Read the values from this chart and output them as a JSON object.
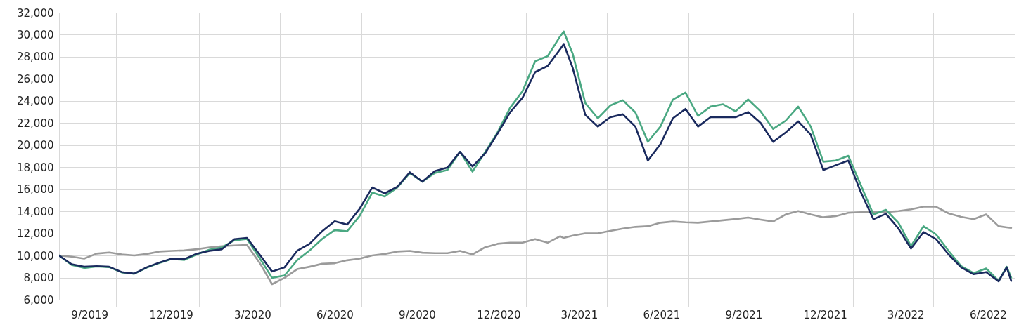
{
  "chart_data": {
    "type": "line",
    "x": [
      "2019-07-29",
      "2019-08-12",
      "2019-08-26",
      "2019-09-09",
      "2019-09-23",
      "2019-10-07",
      "2019-10-21",
      "2019-11-04",
      "2019-11-18",
      "2019-12-02",
      "2019-12-16",
      "2019-12-30",
      "2020-01-13",
      "2020-01-27",
      "2020-02-10",
      "2020-02-24",
      "2020-03-09",
      "2020-03-23",
      "2020-04-06",
      "2020-04-20",
      "2020-05-04",
      "2020-05-18",
      "2020-06-01",
      "2020-06-15",
      "2020-06-29",
      "2020-07-13",
      "2020-07-27",
      "2020-08-10",
      "2020-08-24",
      "2020-09-07",
      "2020-09-21",
      "2020-10-05",
      "2020-10-19",
      "2020-11-02",
      "2020-11-16",
      "2020-11-30",
      "2020-12-14",
      "2020-12-28",
      "2021-01-11",
      "2021-01-25",
      "2021-02-08",
      "2021-02-12",
      "2021-02-22",
      "2021-03-08",
      "2021-03-22",
      "2021-04-05",
      "2021-04-19",
      "2021-05-03",
      "2021-05-17",
      "2021-05-31",
      "2021-06-14",
      "2021-06-28",
      "2021-07-12",
      "2021-07-26",
      "2021-08-09",
      "2021-08-23",
      "2021-09-06",
      "2021-09-20",
      "2021-10-04",
      "2021-10-18",
      "2021-11-01",
      "2021-11-15",
      "2021-11-29",
      "2021-12-13",
      "2021-12-27",
      "2022-01-10",
      "2022-01-24",
      "2022-02-07",
      "2022-02-21",
      "2022-03-07",
      "2022-03-21",
      "2022-04-04",
      "2022-04-18",
      "2022-05-02",
      "2022-05-16",
      "2022-05-30",
      "2022-06-13",
      "2022-06-22",
      "2022-06-27"
    ],
    "series": [
      {
        "color": "#9b9b9b",
        "values": [
          10000,
          9890,
          9720,
          10170,
          10270,
          10100,
          10000,
          10140,
          10360,
          10420,
          10460,
          10570,
          10740,
          10850,
          10910,
          10950,
          9360,
          7400,
          7980,
          8760,
          8980,
          9250,
          9300,
          9570,
          9720,
          10000,
          10140,
          10360,
          10420,
          10250,
          10210,
          10210,
          10420,
          10100,
          10740,
          11060,
          11160,
          11160,
          11480,
          11160,
          11740,
          11590,
          11800,
          12010,
          12010,
          12230,
          12440,
          12590,
          12650,
          12970,
          13080,
          13010,
          12970,
          13080,
          13190,
          13300,
          13440,
          13250,
          13080,
          13720,
          14030,
          13720,
          13460,
          13570,
          13870,
          13930,
          13930,
          13930,
          14030,
          14180,
          14420,
          14420,
          13820,
          13500,
          13290,
          13720,
          12650,
          12550,
          12500
        ]
      },
      {
        "color": "#4aa882",
        "values": [
          10000,
          9150,
          8870,
          9000,
          8950,
          8470,
          8340,
          8900,
          9320,
          9680,
          9600,
          10100,
          10530,
          10740,
          11380,
          11500,
          9780,
          7980,
          8190,
          9570,
          10460,
          11500,
          12300,
          12200,
          13600,
          15690,
          15350,
          16160,
          17480,
          16690,
          17480,
          17750,
          19390,
          17600,
          19350,
          21150,
          23380,
          24900,
          27590,
          28060,
          29860,
          30290,
          28270,
          23810,
          22430,
          23590,
          24060,
          22960,
          20300,
          21680,
          24130,
          24760,
          22640,
          23490,
          23700,
          23060,
          24130,
          23060,
          21470,
          22210,
          23490,
          21680,
          18500,
          18600,
          19030,
          16370,
          13720,
          14140,
          12970,
          10850,
          12650,
          11910,
          10420,
          9040,
          8400,
          8830,
          7700,
          8980,
          8000
        ]
      },
      {
        "color": "#1a2a5e",
        "values": [
          10000,
          9210,
          8980,
          9040,
          8980,
          8500,
          8360,
          8930,
          9360,
          9720,
          9680,
          10170,
          10420,
          10570,
          11480,
          11590,
          10100,
          8550,
          8930,
          10420,
          11060,
          12200,
          13100,
          12800,
          14250,
          16160,
          15630,
          16220,
          17540,
          16690,
          17650,
          17960,
          19390,
          18070,
          19240,
          21040,
          22960,
          24300,
          26610,
          27170,
          28700,
          29160,
          26990,
          22740,
          21680,
          22530,
          22790,
          21680,
          18600,
          20090,
          22430,
          23280,
          21680,
          22530,
          22530,
          22530,
          23000,
          22000,
          20300,
          21150,
          22150,
          20940,
          17750,
          18180,
          18600,
          15730,
          13290,
          13780,
          12440,
          10630,
          12120,
          11480,
          10100,
          8930,
          8300,
          8500,
          7660,
          8930,
          7700
        ]
      }
    ],
    "xlim": [
      "2019-07-29",
      "2022-07-01"
    ],
    "xticks": [
      {
        "value": "2019-09-01",
        "label": "9/2019"
      },
      {
        "value": "2019-10-01",
        "label": null
      },
      {
        "value": "2019-12-01",
        "label": "12/2019"
      },
      {
        "value": "2020-01-01",
        "label": null
      },
      {
        "value": "2020-03-01",
        "label": "3/2020"
      },
      {
        "value": "2020-04-01",
        "label": null
      },
      {
        "value": "2020-06-01",
        "label": "6/2020"
      },
      {
        "value": "2020-07-01",
        "label": null
      },
      {
        "value": "2020-09-01",
        "label": "9/2020"
      },
      {
        "value": "2020-10-01",
        "label": null
      },
      {
        "value": "2020-12-01",
        "label": "12/2020"
      },
      {
        "value": "2021-01-01",
        "label": null
      },
      {
        "value": "2021-03-01",
        "label": "3/2021"
      },
      {
        "value": "2021-04-01",
        "label": null
      },
      {
        "value": "2021-06-01",
        "label": "6/2021"
      },
      {
        "value": "2021-07-01",
        "label": null
      },
      {
        "value": "2021-09-01",
        "label": "9/2021"
      },
      {
        "value": "2021-10-01",
        "label": null
      },
      {
        "value": "2021-12-01",
        "label": "12/2021"
      },
      {
        "value": "2022-01-01",
        "label": null
      },
      {
        "value": "2022-03-01",
        "label": "3/2022"
      },
      {
        "value": "2022-04-01",
        "label": null
      },
      {
        "value": "2022-06-01",
        "label": "6/2022"
      },
      {
        "value": "2022-07-01",
        "label": null
      }
    ],
    "ylim": [
      6000,
      32000
    ],
    "yticks": [
      {
        "value": 6000,
        "label": "6,000"
      },
      {
        "value": 8000,
        "label": "8,000"
      },
      {
        "value": 10000,
        "label": "10,000"
      },
      {
        "value": 12000,
        "label": "12,000"
      },
      {
        "value": 14000,
        "label": "14,000"
      },
      {
        "value": 16000,
        "label": "16,000"
      },
      {
        "value": 18000,
        "label": "18,000"
      },
      {
        "value": 20000,
        "label": "20,000"
      },
      {
        "value": 22000,
        "label": "22,000"
      },
      {
        "value": 24000,
        "label": "24,000"
      },
      {
        "value": 26000,
        "label": "26,000"
      },
      {
        "value": 28000,
        "label": "28,000"
      },
      {
        "value": 30000,
        "label": "30,000"
      },
      {
        "value": 32000,
        "label": "32,000"
      }
    ],
    "grid": true,
    "line_style": "solid"
  }
}
